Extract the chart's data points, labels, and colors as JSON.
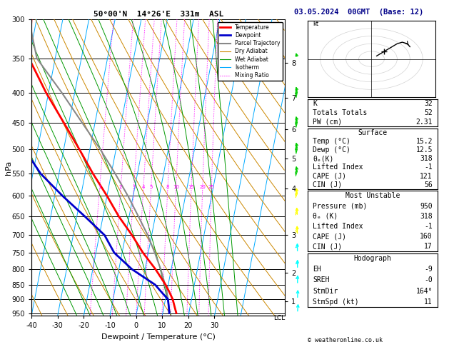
{
  "title_skewt": "50°00'N  14°26'E  331m  ASL",
  "date_str": "03.05.2024  00GMT  (Base: 12)",
  "xlabel": "Dewpoint / Temperature (°C)",
  "x_min": -40,
  "x_max": 35,
  "p_min": 300,
  "p_max": 960,
  "skew_factor": 22.0,
  "p_levels": [
    300,
    350,
    400,
    450,
    500,
    550,
    600,
    650,
    700,
    750,
    800,
    850,
    900,
    950
  ],
  "km_ticks": [
    8,
    7,
    6,
    5,
    4,
    3,
    2,
    1
  ],
  "km_pressures": [
    356,
    408,
    462,
    518,
    583,
    700,
    810,
    908
  ],
  "temp_color": "#FF0000",
  "dewp_color": "#0000CC",
  "parcel_color": "#888888",
  "dry_adiabat_color": "#CC8800",
  "wet_adiabat_color": "#009900",
  "isotherm_color": "#00AAFF",
  "mixing_ratio_color": "#FF00FF",
  "legend_items": [
    {
      "label": "Temperature",
      "color": "#FF0000",
      "lw": 2.0,
      "ls": "solid"
    },
    {
      "label": "Dewpoint",
      "color": "#0000CC",
      "lw": 2.0,
      "ls": "solid"
    },
    {
      "label": "Parcel Trajectory",
      "color": "#888888",
      "lw": 1.5,
      "ls": "solid"
    },
    {
      "label": "Dry Adiabat",
      "color": "#CC8800",
      "lw": 0.8,
      "ls": "solid"
    },
    {
      "label": "Wet Adiabat",
      "color": "#009900",
      "lw": 0.8,
      "ls": "solid"
    },
    {
      "label": "Isotherm",
      "color": "#00AAFF",
      "lw": 0.8,
      "ls": "solid"
    },
    {
      "label": "Mixing Ratio",
      "color": "#FF00FF",
      "lw": 0.8,
      "ls": "dotted"
    }
  ],
  "mixing_ratio_vals": [
    1,
    2,
    3,
    4,
    5,
    8,
    10,
    15,
    20,
    25
  ],
  "sounding_pressures": [
    950,
    925,
    900,
    875,
    850,
    800,
    750,
    700,
    650,
    600,
    550,
    500,
    450,
    400,
    350,
    300
  ],
  "sounding_temp": [
    15.2,
    14.0,
    12.8,
    11.0,
    9.0,
    4.0,
    -2.0,
    -7.5,
    -14.0,
    -20.0,
    -27.0,
    -34.0,
    -42.0,
    -51.0,
    -60.0,
    -62.0
  ],
  "sounding_dewp": [
    12.5,
    11.8,
    11.0,
    8.0,
    5.0,
    -5.0,
    -13.0,
    -18.0,
    -27.0,
    -37.0,
    -47.0,
    -55.0,
    -63.0,
    -68.0,
    -73.0,
    -75.0
  ],
  "parcel_temp": [
    12.5,
    11.8,
    11.0,
    10.0,
    8.8,
    6.0,
    2.5,
    -1.5,
    -6.5,
    -12.0,
    -18.5,
    -26.0,
    -35.0,
    -45.0,
    -57.0,
    -63.0
  ],
  "stats": {
    "K": 32,
    "Totals_Totals": 52,
    "PW_cm": 2.31,
    "Surface_Temp": 15.2,
    "Surface_Dewp": 12.5,
    "Surface_theta_e": 318,
    "Surface_Lifted_Index": -1,
    "Surface_CAPE": 121,
    "Surface_CIN": 56,
    "MU_Pressure": 950,
    "MU_theta_e": 318,
    "MU_Lifted_Index": -1,
    "MU_CAPE": 160,
    "MU_CIN": 17,
    "EH": -9,
    "SREH": 0,
    "StmDir": 164,
    "StmSpd": 11
  },
  "wind_barb_pressures": [
    950,
    900,
    850,
    800,
    750,
    700,
    650,
    600,
    550,
    500,
    450,
    400,
    350,
    300
  ],
  "wind_barb_speeds": [
    5,
    8,
    10,
    12,
    15,
    20,
    25,
    30,
    35,
    40,
    45,
    48,
    52,
    55
  ],
  "wind_barb_dirs": [
    164,
    170,
    175,
    180,
    185,
    190,
    200,
    210,
    215,
    220,
    225,
    228,
    230,
    235
  ],
  "hodo_u": [
    2,
    4,
    6,
    8,
    10,
    12,
    14,
    15
  ],
  "hodo_v": [
    2,
    4,
    6,
    8,
    10,
    11,
    10,
    8
  ],
  "hodo_arrow_u": [
    -10,
    -15
  ],
  "hodo_arrow_v": [
    5,
    8
  ],
  "storm_motion_u": 5,
  "storm_motion_v": 5
}
